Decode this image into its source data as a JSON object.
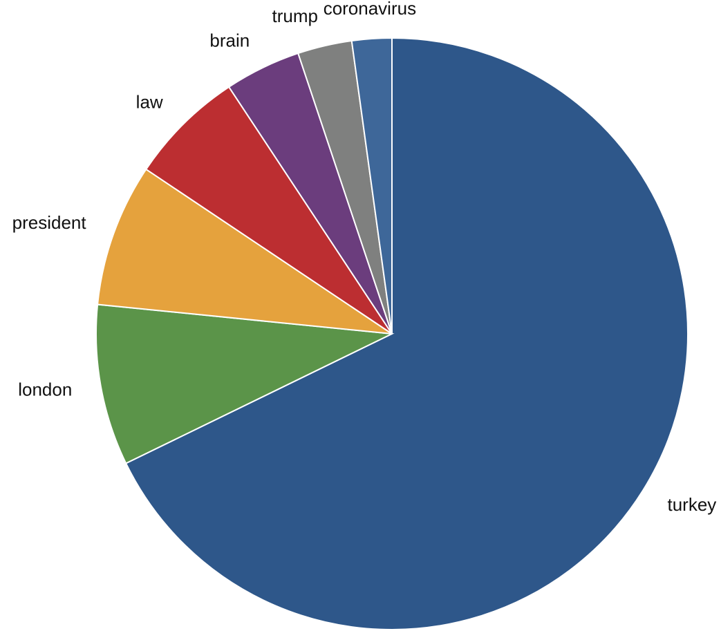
{
  "chart_data": {
    "type": "pie",
    "start": "top",
    "direction": "clockwise",
    "slices": [
      {
        "label": "turkey",
        "value": 68.6,
        "color": "#2e578a"
      },
      {
        "label": "london",
        "value": 8.9,
        "color": "#5b9449"
      },
      {
        "label": "president",
        "value": 7.9,
        "color": "#e5a23d"
      },
      {
        "label": "law",
        "value": 6.4,
        "color": "#bc2e31"
      },
      {
        "label": "brain",
        "value": 4.2,
        "color": "#6b3d7d"
      },
      {
        "label": "trump",
        "value": 3.0,
        "color": "#7f807f"
      },
      {
        "label": "coronavirus",
        "value": 2.2,
        "color": "#3e6799"
      }
    ]
  }
}
